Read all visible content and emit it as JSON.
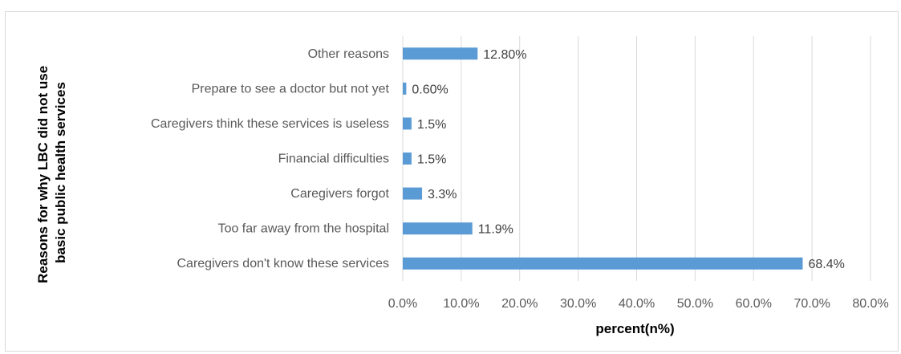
{
  "chart_data": {
    "type": "bar",
    "orientation": "horizontal",
    "title": "",
    "xlabel": "percent(n%)",
    "ylabel": [
      "Reasons for why LBC did not use",
      "basic public health services"
    ],
    "xlim": [
      0,
      80
    ],
    "x_ticks": [
      0,
      10,
      20,
      30,
      40,
      50,
      60,
      70,
      80
    ],
    "x_tick_labels": [
      "0.0%",
      "10.0%",
      "20.0%",
      "30.0%",
      "40.0%",
      "50.0%",
      "60.0%",
      "70.0%",
      "80.0%"
    ],
    "grid": "vertical major gridlines",
    "categories": [
      "Other reasons",
      "Prepare to see a doctor but not yet",
      "Caregivers think these services is useless",
      "Financial difficulties",
      "Caregivers forgot",
      "Too far away from the hospital",
      "Caregivers don't know these services"
    ],
    "values": [
      12.8,
      0.6,
      1.5,
      1.5,
      3.3,
      11.9,
      68.4
    ],
    "data_labels": [
      "12.80%",
      "0.60%",
      "1.5%",
      "1.5%",
      "3.3%",
      "11.9%",
      "68.4%"
    ],
    "bar_color": "#5b9bd5"
  }
}
